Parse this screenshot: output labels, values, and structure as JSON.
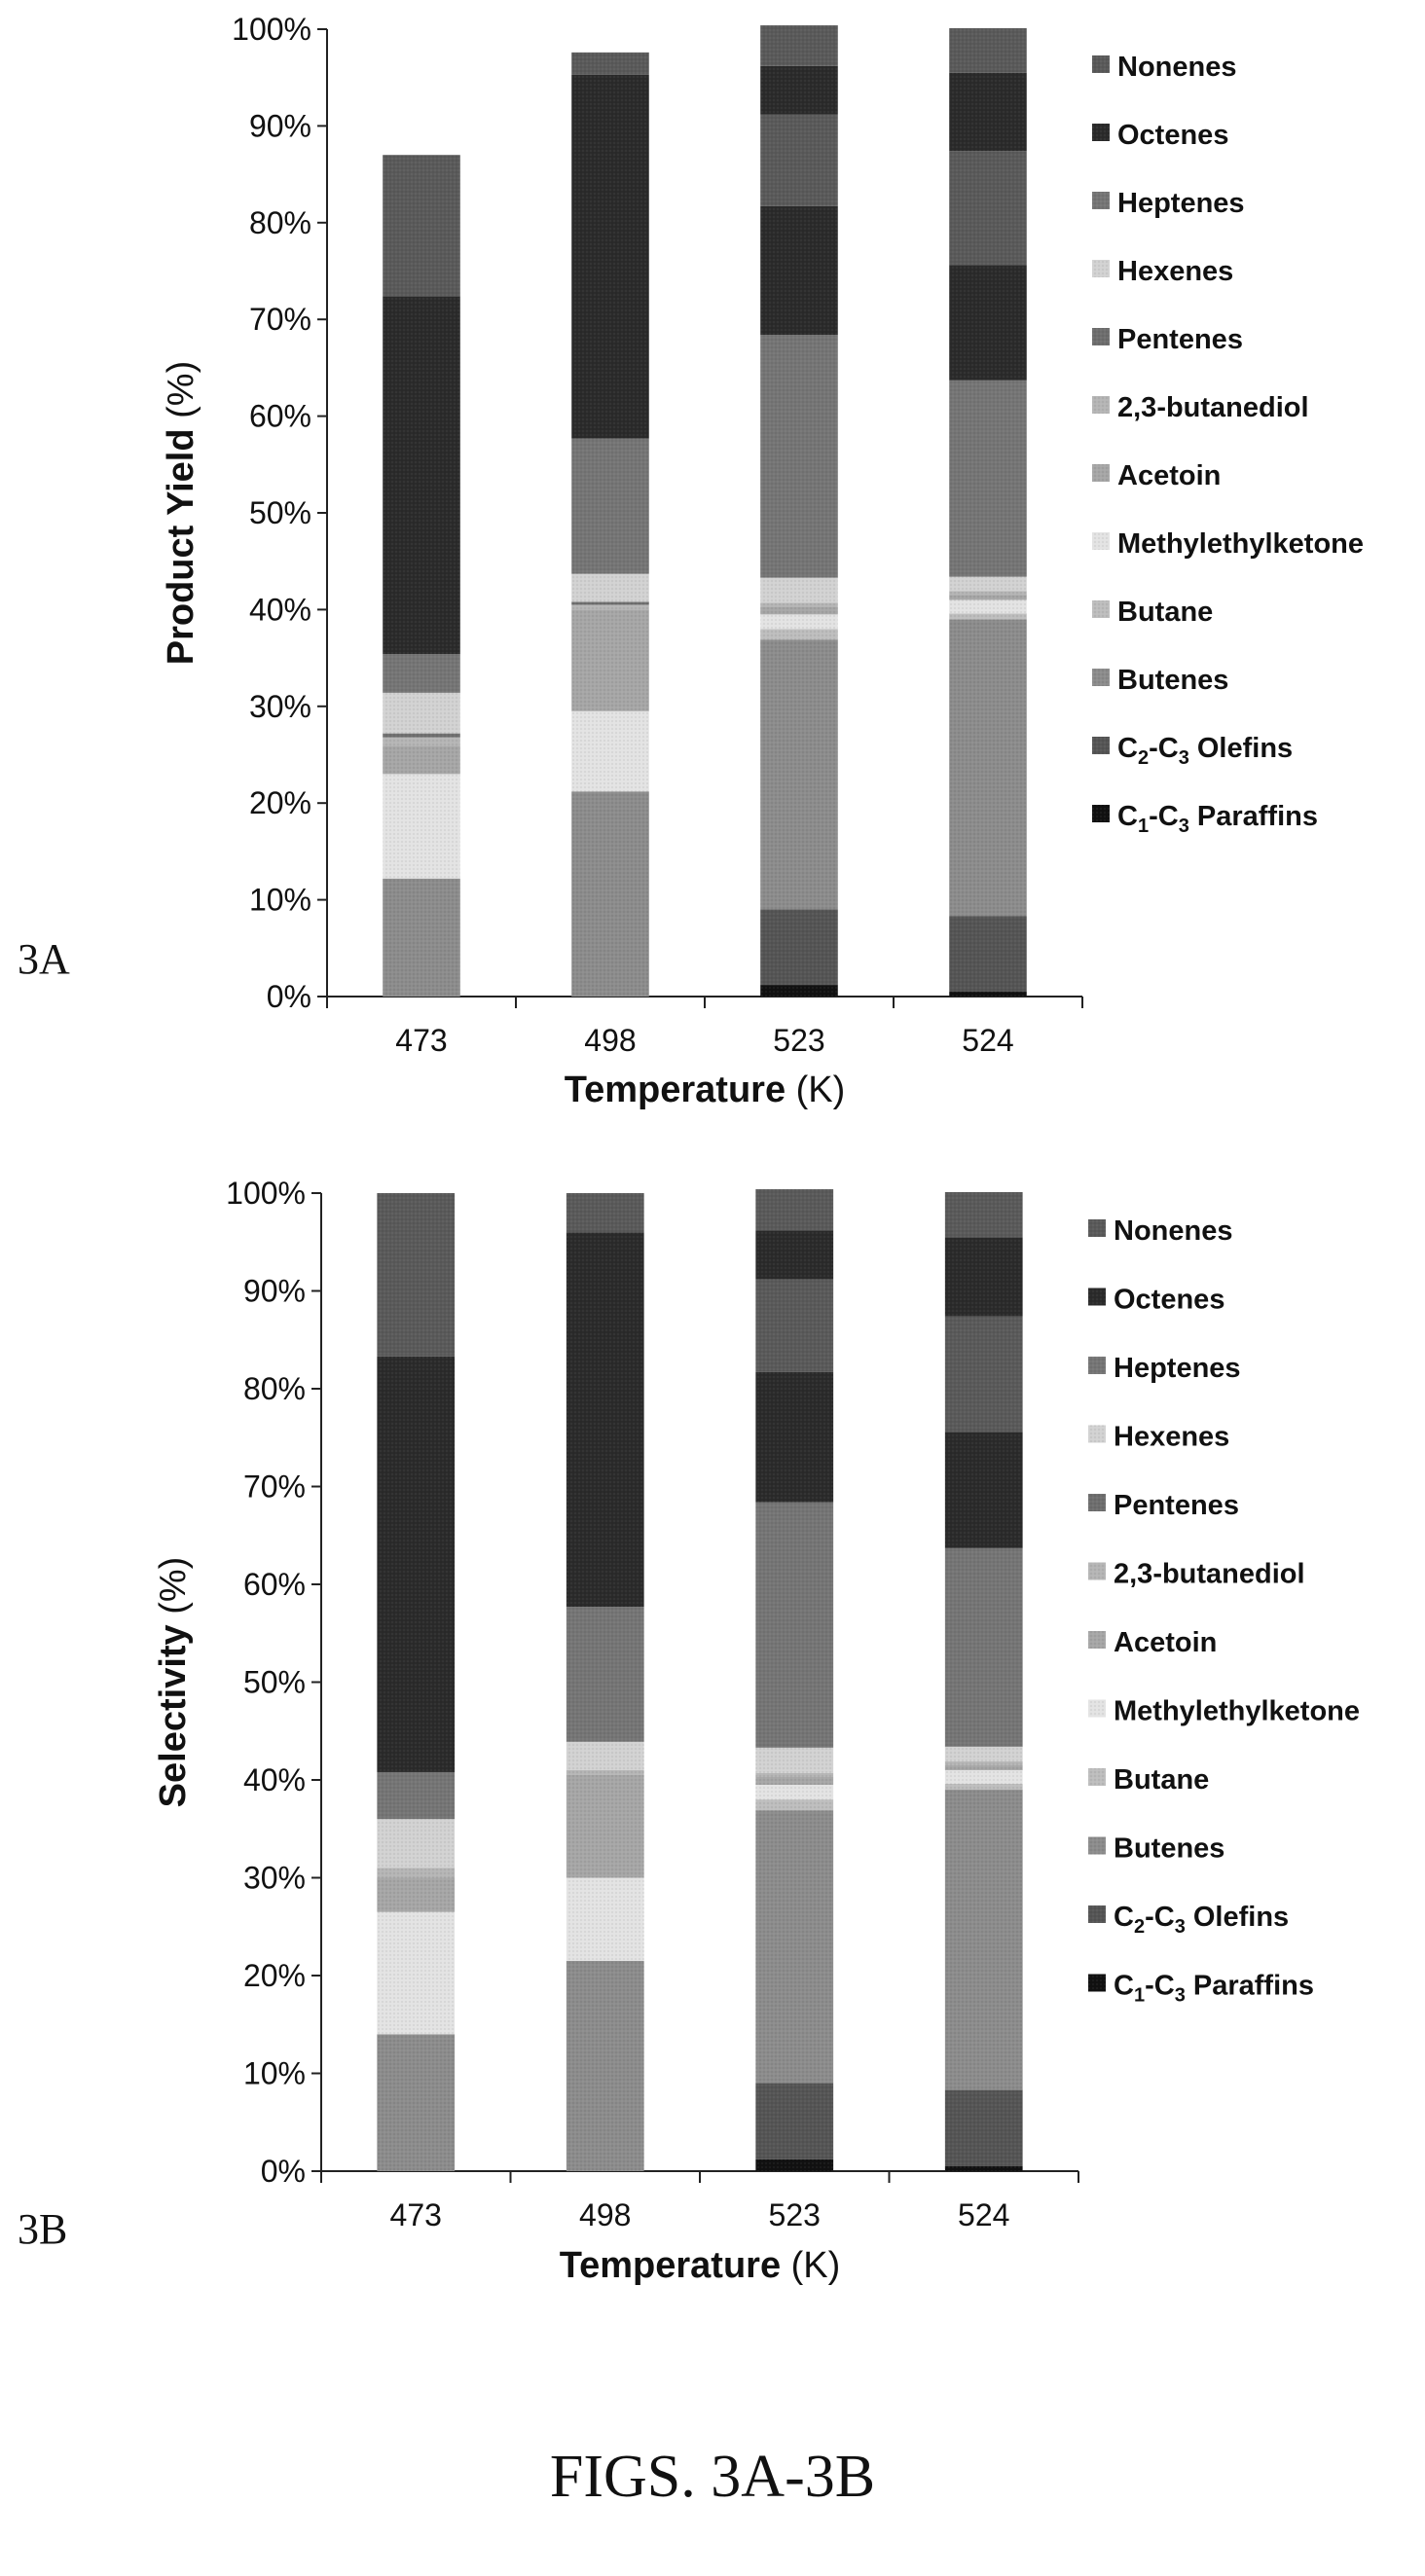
{
  "figure": {
    "caption": "FIGS. 3A-3B",
    "panels": [
      {
        "label": "3A"
      },
      {
        "label": "3B"
      }
    ]
  },
  "colors": {
    "C1-C3 Paraffins": "#111111",
    "C2-C3 Olefins": "#555555",
    "Butenes": "#8c8c8c",
    "Butane": "#bdbdbd",
    "Methylethylketone": "#e3e3e3",
    "Acetoin": "#a6a6a6",
    "2,3-butanediol": "#b5b5b5",
    "Pentenes": "#6e6e6e",
    "Hexenes": "#d2d2d2",
    "Heptenes": "#757575",
    "Octenes": "#2b2b2b",
    "Nonenes": "#5a5a5a"
  },
  "chart_data": [
    {
      "type": "bar",
      "stacked": true,
      "title": "",
      "xlabel": "Temperature",
      "xlabel_unit": "(K)",
      "ylabel": "Product Yield",
      "ylabel_unit": "(%)",
      "ylim": [
        0,
        100
      ],
      "yticks": [
        "0%",
        "10%",
        "20%",
        "30%",
        "40%",
        "50%",
        "60%",
        "70%",
        "80%",
        "90%",
        "100%"
      ],
      "categories": [
        "473",
        "498",
        "523",
        "524"
      ],
      "legend": {
        "position": "right",
        "entries": [
          {
            "text": "Nonenes"
          },
          {
            "text": "Octenes"
          },
          {
            "text": "Heptenes"
          },
          {
            "text": "Hexenes"
          },
          {
            "text": "Pentenes"
          },
          {
            "text": "2,3-butanediol"
          },
          {
            "text": "Acetoin"
          },
          {
            "text": "Methylethylketone"
          },
          {
            "text": "Butane"
          },
          {
            "text": "Butenes"
          },
          {
            "text": "Olefins",
            "prefix": "C",
            "sub1": "2",
            "mid": "-C",
            "sub2": "3"
          },
          {
            "text": "Paraffins",
            "prefix": "C",
            "sub1": "1",
            "mid": "-C",
            "sub2": "3"
          }
        ]
      },
      "series": [
        {
          "key": "C1-C3 Paraffins",
          "values": [
            0,
            0,
            1.2,
            0.5
          ]
        },
        {
          "key": "C2-C3 Olefins",
          "values": [
            0,
            0,
            7.8,
            7.8
          ]
        },
        {
          "key": "Butenes",
          "values": [
            12.2,
            21.2,
            27.9,
            30.7
          ]
        },
        {
          "key": "Butane",
          "values": [
            0,
            0,
            1.1,
            0.6
          ]
        },
        {
          "key": "Methylethylketone",
          "values": [
            10.8,
            8.3,
            1.5,
            1.4
          ]
        },
        {
          "key": "Acetoin",
          "values": [
            2.9,
            10.5,
            0.8,
            0.5
          ]
        },
        {
          "key": "2,3-butanediol",
          "values": [
            0.9,
            0.5,
            0.4,
            0.4
          ]
        },
        {
          "key": "Pentenes",
          "values": [
            0.4,
            0.3,
            0,
            0
          ]
        },
        {
          "key": "Hexenes",
          "values": [
            4.2,
            2.9,
            2.6,
            1.5
          ]
        },
        {
          "key": "Heptenes",
          "values": [
            4.0,
            14.0,
            25.1,
            20.3
          ]
        },
        {
          "key": "Octenes",
          "values": [
            37.0,
            37.6,
            13.3,
            11.9
          ]
        },
        {
          "key": "Nonenes",
          "values": [
            14.6,
            2.3,
            9.5,
            11.8
          ]
        },
        {
          "key": "Octenes",
          "values": [
            0,
            0,
            5.0,
            8.1
          ]
        },
        {
          "key": "Nonenes",
          "values": [
            0,
            0,
            4.2,
            4.6
          ]
        }
      ]
    },
    {
      "type": "bar",
      "stacked": true,
      "title": "",
      "xlabel": "Temperature",
      "xlabel_unit": "(K)",
      "ylabel": "Selectivity",
      "ylabel_unit": "(%)",
      "ylim": [
        0,
        100
      ],
      "yticks": [
        "0%",
        "10%",
        "20%",
        "30%",
        "40%",
        "50%",
        "60%",
        "70%",
        "80%",
        "90%",
        "100%"
      ],
      "categories": [
        "473",
        "498",
        "523",
        "524"
      ],
      "legend": {
        "position": "right",
        "entries": [
          {
            "text": "Nonenes"
          },
          {
            "text": "Octenes"
          },
          {
            "text": "Heptenes"
          },
          {
            "text": "Hexenes"
          },
          {
            "text": "Pentenes"
          },
          {
            "text": "2,3-butanediol"
          },
          {
            "text": "Acetoin"
          },
          {
            "text": "Methylethylketone"
          },
          {
            "text": "Butane"
          },
          {
            "text": "Butenes"
          },
          {
            "text": "Olefins",
            "prefix": "C",
            "sub1": "2",
            "mid": "-C",
            "sub2": "3"
          },
          {
            "text": "Paraffins",
            "prefix": "C",
            "sub1": "1",
            "mid": "-C",
            "sub2": "3"
          }
        ]
      },
      "series": [
        {
          "key": "C1-C3 Paraffins",
          "values": [
            0,
            0,
            1.2,
            0.5
          ]
        },
        {
          "key": "C2-C3 Olefins",
          "values": [
            0,
            0,
            7.8,
            7.8
          ]
        },
        {
          "key": "Butenes",
          "values": [
            14.0,
            21.5,
            27.9,
            30.7
          ]
        },
        {
          "key": "Butane",
          "values": [
            0,
            0,
            1.1,
            0.6
          ]
        },
        {
          "key": "Methylethylketone",
          "values": [
            12.5,
            8.5,
            1.5,
            1.4
          ]
        },
        {
          "key": "Acetoin",
          "values": [
            3.5,
            10.5,
            0.8,
            0.5
          ]
        },
        {
          "key": "2,3-butanediol",
          "values": [
            1.0,
            0.5,
            0.4,
            0.4
          ]
        },
        {
          "key": "Pentenes",
          "values": [
            0,
            0,
            0,
            0
          ]
        },
        {
          "key": "Hexenes",
          "values": [
            5.0,
            2.9,
            2.6,
            1.5
          ]
        },
        {
          "key": "Heptenes",
          "values": [
            4.8,
            13.8,
            25.1,
            20.3
          ]
        },
        {
          "key": "Octenes",
          "values": [
            42.5,
            38.3,
            13.3,
            11.9
          ]
        },
        {
          "key": "Nonenes",
          "values": [
            16.7,
            4.0,
            9.5,
            11.8
          ]
        },
        {
          "key": "Octenes",
          "values": [
            0,
            0,
            5.0,
            8.1
          ]
        },
        {
          "key": "Nonenes",
          "values": [
            0,
            0,
            4.2,
            4.6
          ]
        }
      ]
    }
  ]
}
